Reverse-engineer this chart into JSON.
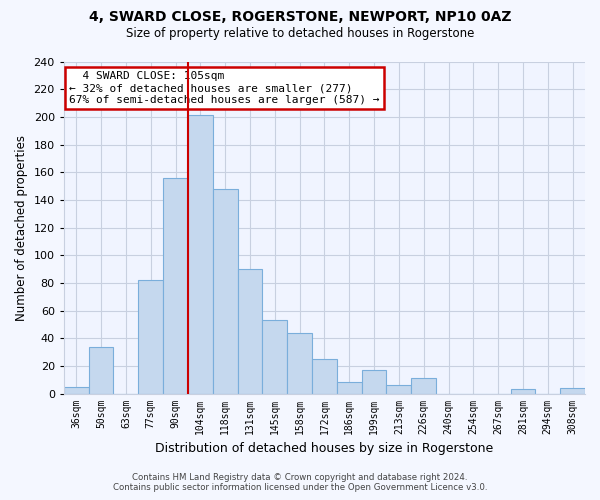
{
  "title": "4, SWARD CLOSE, ROGERSTONE, NEWPORT, NP10 0AZ",
  "subtitle": "Size of property relative to detached houses in Rogerstone",
  "xlabel": "Distribution of detached houses by size in Rogerstone",
  "ylabel": "Number of detached properties",
  "bar_color": "#c5d8ee",
  "bar_edge_color": "#7aaedb",
  "marker_line_color": "#cc0000",
  "categories": [
    "36sqm",
    "50sqm",
    "63sqm",
    "77sqm",
    "90sqm",
    "104sqm",
    "118sqm",
    "131sqm",
    "145sqm",
    "158sqm",
    "172sqm",
    "186sqm",
    "199sqm",
    "213sqm",
    "226sqm",
    "240sqm",
    "254sqm",
    "267sqm",
    "281sqm",
    "294sqm",
    "308sqm"
  ],
  "values": [
    5,
    34,
    0,
    82,
    156,
    201,
    148,
    90,
    53,
    44,
    25,
    8,
    17,
    6,
    11,
    0,
    0,
    0,
    3,
    0,
    4
  ],
  "ylim": [
    0,
    240
  ],
  "yticks": [
    0,
    20,
    40,
    60,
    80,
    100,
    120,
    140,
    160,
    180,
    200,
    220,
    240
  ],
  "annotation_title": "4 SWARD CLOSE: 105sqm",
  "annotation_line1": "← 32% of detached houses are smaller (277)",
  "annotation_line2": "67% of semi-detached houses are larger (587) →",
  "annotation_box_color": "#ffffff",
  "annotation_box_edge": "#cc0000",
  "footnote1": "Contains HM Land Registry data © Crown copyright and database right 2024.",
  "footnote2": "Contains public sector information licensed under the Open Government Licence v3.0.",
  "bg_color": "#f4f7ff",
  "plot_bg_color": "#f0f4ff",
  "grid_color": "#c8d0e0"
}
